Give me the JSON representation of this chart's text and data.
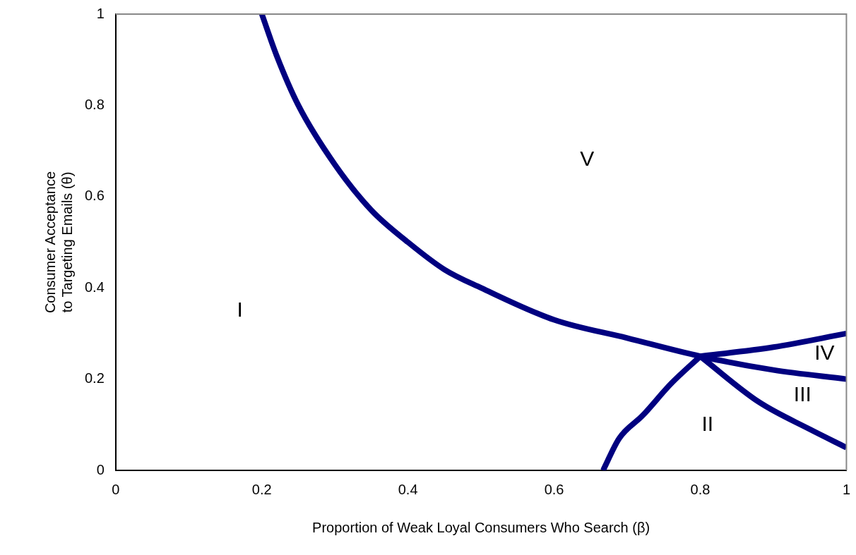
{
  "chart_data": {
    "type": "line",
    "xlabel": "Proportion of Weak Loyal Consumers Who Search (β)",
    "ylabel": "Consumer Acceptance\nto Targeting Emails (θ)",
    "xlim": [
      0,
      1
    ],
    "ylim": [
      0,
      1
    ],
    "xticks": [
      0,
      0.2,
      0.4,
      0.6,
      0.8,
      1
    ],
    "yticks": [
      0,
      0.2,
      0.4,
      0.6,
      0.8,
      1
    ],
    "grid": false,
    "legend": false,
    "marker": "none",
    "line_style": "solid",
    "series": [
      {
        "color": "#000080",
        "x": [
          0.2,
          0.22,
          0.25,
          0.3,
          0.35,
          0.4,
          0.45,
          0.5,
          0.6,
          0.7,
          0.8,
          0.9,
          1
        ],
        "values": [
          1,
          0.91,
          0.8,
          0.67,
          0.57,
          0.5,
          0.44,
          0.4,
          0.33,
          0.29,
          0.25,
          0.22,
          0.2
        ]
      },
      {
        "color": "#000080",
        "x": [
          0.8,
          0.9,
          1
        ],
        "values": [
          0.25,
          0.27,
          0.3
        ]
      },
      {
        "color": "#000080",
        "x": [
          0.667,
          0.689,
          0.721,
          0.76,
          0.8
        ],
        "values": [
          0,
          0.07,
          0.12,
          0.19,
          0.25
        ]
      },
      {
        "color": "#000080",
        "x": [
          0.8,
          0.88,
          0.95,
          1
        ],
        "values": [
          0.25,
          0.15,
          0.09,
          0.05
        ]
      }
    ],
    "annotations": [
      "I",
      "II",
      "III",
      "IV",
      "V"
    ]
  }
}
